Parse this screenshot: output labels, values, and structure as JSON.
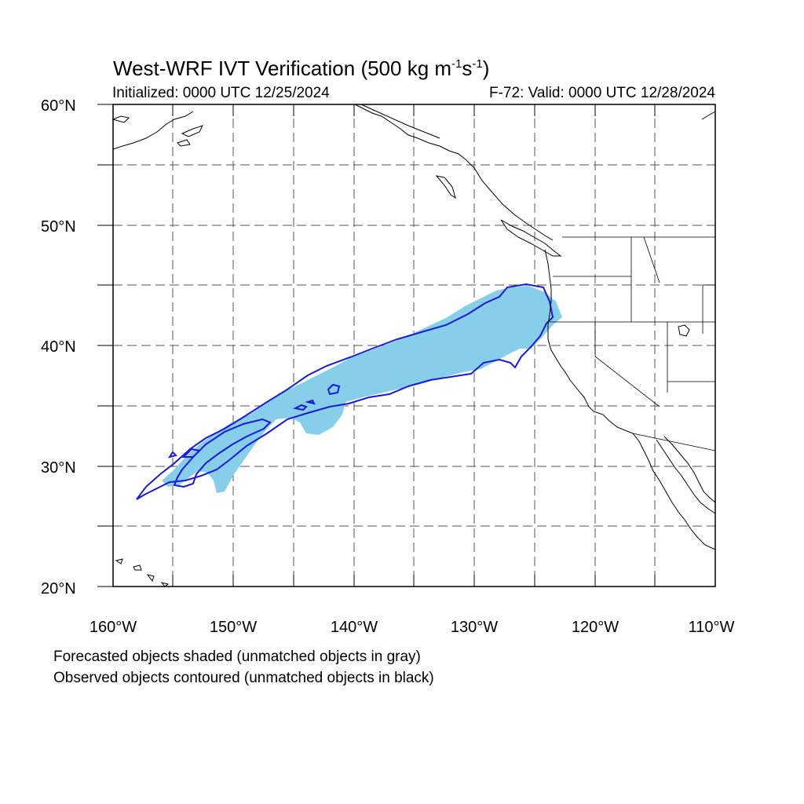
{
  "title": {
    "main": "West-WRF IVT Verification (500 kg m",
    "sup1": "-1",
    "mid": "s",
    "sup2": "-1",
    "end": ")"
  },
  "subtitle": {
    "initialized": "Initialized: 0000 UTC 12/25/2024",
    "valid": "F-72: Valid: 0000 UTC 12/28/2024"
  },
  "axes": {
    "lat_labels": [
      "20°N",
      "30°N",
      "40°N",
      "50°N",
      "60°N"
    ],
    "lon_labels": [
      "160°W",
      "150°W",
      "140°W",
      "130°W",
      "120°W",
      "110°W"
    ],
    "lat_range": [
      20,
      60
    ],
    "lon_range": [
      -160,
      -110
    ],
    "grid_interval_deg": 5,
    "grid": true
  },
  "footnotes": {
    "line1": "Forecasted objects shaded (unmatched objects in gray)",
    "line2": "Observed objects contoured (unmatched objects in black)"
  },
  "colors": {
    "forecast_fill": "#87ceeb",
    "observed_contour": "#1a1ad6",
    "coastline": "#000000",
    "grid": "#555555"
  }
}
